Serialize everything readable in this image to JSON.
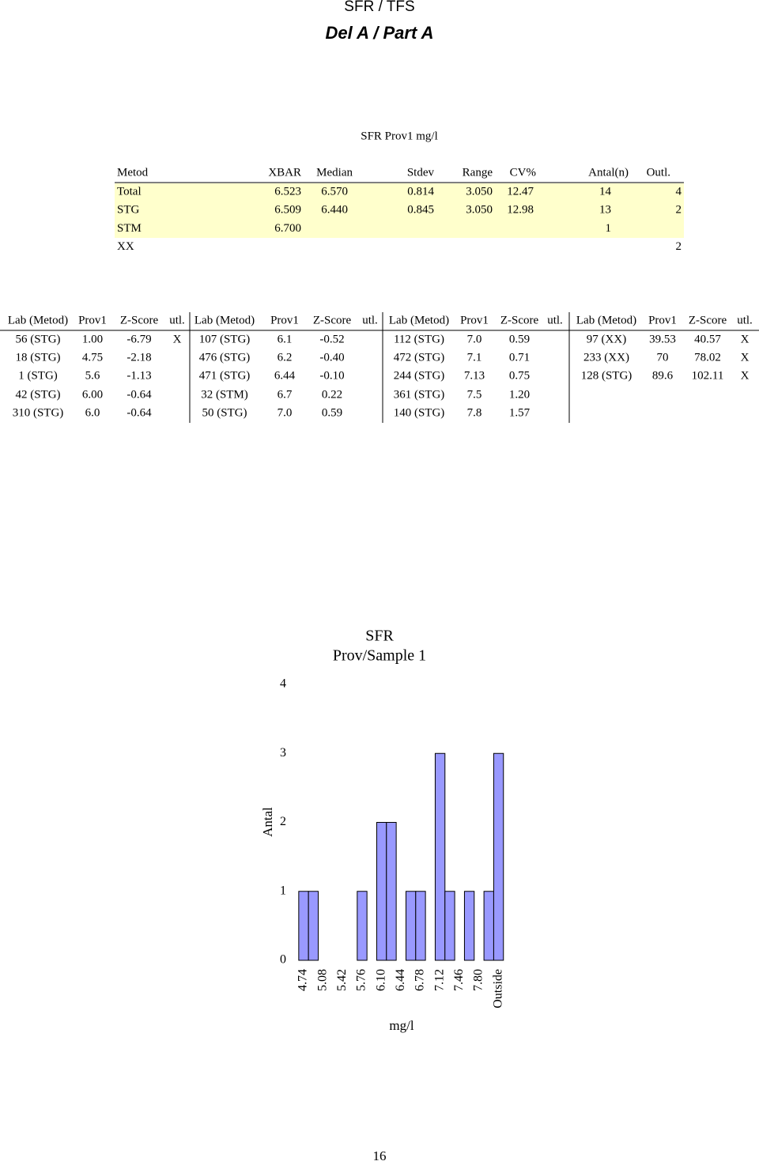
{
  "header": {
    "title": "SFR / TFS",
    "subtitle": "Del A / Part A"
  },
  "summary": {
    "title": "SFR Prov1 mg/l",
    "columns": [
      "Metod",
      "XBAR",
      "Median",
      "Stdev",
      "Range",
      "CV%",
      "Antal(n)",
      "Outl."
    ],
    "rows": [
      [
        "Total",
        "6.523",
        "6.570",
        "0.814",
        "3.050",
        "12.47",
        "14",
        "4"
      ],
      [
        "STG",
        "6.509",
        "6.440",
        "0.845",
        "3.050",
        "12.98",
        "13",
        "2"
      ],
      [
        "STM",
        "6.700",
        null,
        null,
        null,
        null,
        "1",
        null
      ],
      [
        "XX",
        null,
        null,
        null,
        null,
        null,
        null,
        "2"
      ]
    ]
  },
  "lab_table": {
    "columns": [
      "Lab (Metod)",
      "Prov1",
      "Z-Score",
      "utl."
    ],
    "groups": [
      [
        [
          "56 (STG)",
          "1.00",
          "-6.79",
          "X"
        ],
        [
          "18 (STG)",
          "4.75",
          "-2.18",
          null
        ],
        [
          "1 (STG)",
          "5.6",
          "-1.13",
          null
        ],
        [
          "42 (STG)",
          "6.00",
          "-0.64",
          null
        ],
        [
          "310 (STG)",
          "6.0",
          "-0.64",
          null
        ]
      ],
      [
        [
          "107 (STG)",
          "6.1",
          "-0.52",
          null
        ],
        [
          "476 (STG)",
          "6.2",
          "-0.40",
          null
        ],
        [
          "471 (STG)",
          "6.44",
          "-0.10",
          null
        ],
        [
          "32 (STM)",
          "6.7",
          "0.22",
          null
        ],
        [
          "50 (STG)",
          "7.0",
          "0.59",
          null
        ]
      ],
      [
        [
          "112 (STG)",
          "7.0",
          "0.59",
          null
        ],
        [
          "472 (STG)",
          "7.1",
          "0.71",
          null
        ],
        [
          "244 (STG)",
          "7.13",
          "0.75",
          null
        ],
        [
          "361 (STG)",
          "7.5",
          "1.20",
          null
        ],
        [
          "140 (STG)",
          "7.8",
          "1.57",
          null
        ]
      ],
      [
        [
          "97 (XX)",
          "39.53",
          "40.57",
          "X"
        ],
        [
          "233 (XX)",
          "70",
          "78.02",
          "X"
        ],
        [
          "128 (STG)",
          "89.6",
          "102.11",
          "X"
        ]
      ]
    ]
  },
  "chart_data": {
    "type": "bar",
    "title": "SFR",
    "subtitle": "Prov/Sample 1",
    "y_label": "Antal",
    "x_label": "mg/l",
    "categories": [
      "4.74",
      null,
      "5.08",
      null,
      "5.42",
      null,
      "5.76",
      null,
      "6.10",
      null,
      "6.44",
      null,
      "6.78",
      null,
      "7.12",
      null,
      "7.46",
      null,
      "7.80",
      null,
      "Outside"
    ],
    "values": [
      1,
      1,
      0,
      0,
      0,
      0,
      1,
      0,
      2,
      2,
      0,
      1,
      1,
      0,
      3,
      1,
      0,
      1,
      0,
      1,
      3
    ],
    "color": "#9999ff",
    "ylim": [
      0,
      4
    ],
    "yticks": [
      0,
      1,
      2,
      3,
      4
    ],
    "grid": false
  },
  "footer": {
    "page": "16"
  }
}
